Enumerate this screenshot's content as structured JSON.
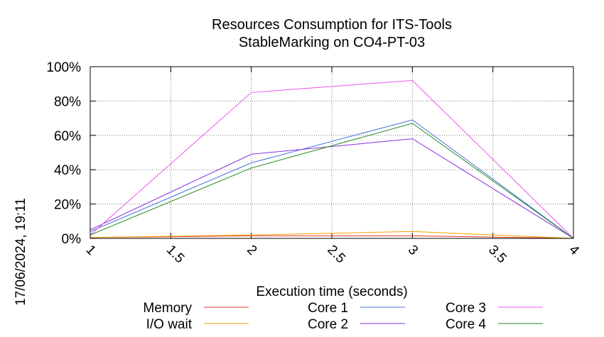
{
  "chart_data": {
    "type": "line",
    "title": "Resources Consumption for ITS-Tools",
    "subtitle": "StableMarking on CO4-PT-03",
    "xlabel": "Execution time (seconds)",
    "ylabel": "",
    "xlim": [
      1,
      4
    ],
    "ylim": [
      0,
      100
    ],
    "x_ticks": [
      "1",
      "1.5",
      "2",
      "2.5",
      "3",
      "3.5",
      "4"
    ],
    "y_ticks": [
      "0%",
      "20%",
      "40%",
      "60%",
      "80%",
      "100%"
    ],
    "grid": true,
    "legend_position": "bottom",
    "side_label": "17/06/2024, 19:11",
    "x": [
      1,
      2,
      3,
      4
    ],
    "series": [
      {
        "name": "Memory",
        "color": "#e8352e",
        "values": [
          0.5,
          1.5,
          1.5,
          0
        ]
      },
      {
        "name": "I/O wait",
        "color": "#f0a000",
        "values": [
          0.5,
          2,
          4,
          0
        ]
      },
      {
        "name": "Core 1",
        "color": "#3f73d6",
        "values": [
          4,
          44,
          69,
          0
        ]
      },
      {
        "name": "Core 2",
        "color": "#8a2be2",
        "values": [
          5,
          49,
          58,
          0
        ]
      },
      {
        "name": "Core 3",
        "color": "#ee55ee",
        "values": [
          2,
          85,
          92,
          0
        ]
      },
      {
        "name": "Core 4",
        "color": "#228b22",
        "values": [
          2,
          41,
          67,
          0
        ]
      }
    ]
  }
}
